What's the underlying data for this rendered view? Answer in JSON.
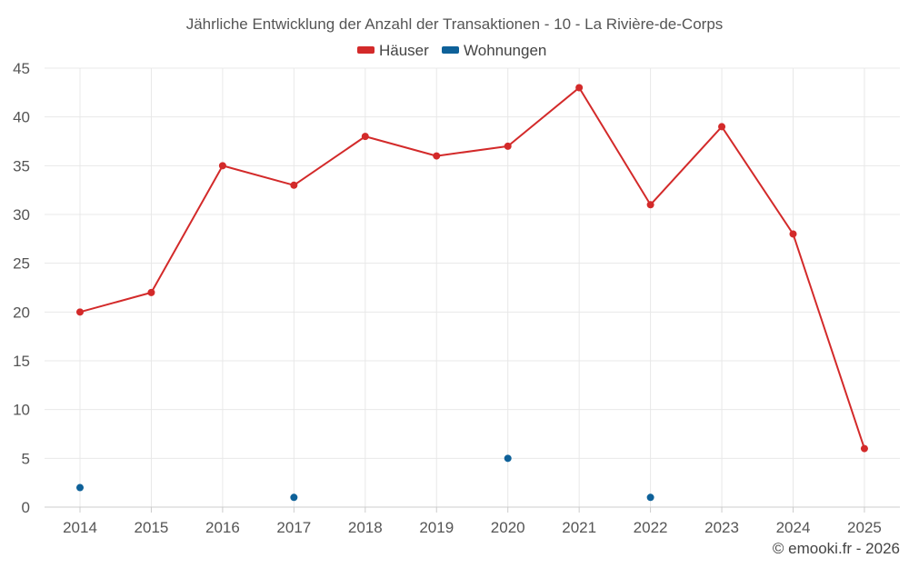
{
  "chart_data": {
    "type": "line",
    "title": "Jährliche Entwicklung der Anzahl der Transaktionen - 10 - La Rivière-de-Corps",
    "categories": [
      "2014",
      "2015",
      "2016",
      "2017",
      "2018",
      "2019",
      "2020",
      "2021",
      "2022",
      "2023",
      "2024",
      "2025"
    ],
    "ylim": [
      0,
      45
    ],
    "yticks": [
      0,
      5,
      10,
      15,
      20,
      25,
      30,
      35,
      40,
      45
    ],
    "grid": true,
    "legend_position": "top-center",
    "series": [
      {
        "name": "Häuser",
        "color": "#d32a2a",
        "values": [
          20,
          22,
          35,
          33,
          38,
          36,
          37,
          43,
          31,
          39,
          28,
          6
        ],
        "line": true
      },
      {
        "name": "Wohnungen",
        "color": "#0e6199",
        "values": [
          2,
          null,
          null,
          1,
          null,
          null,
          5,
          null,
          1,
          null,
          null,
          null
        ],
        "line": false
      }
    ]
  },
  "credit": "© emooki.fr - 2026"
}
